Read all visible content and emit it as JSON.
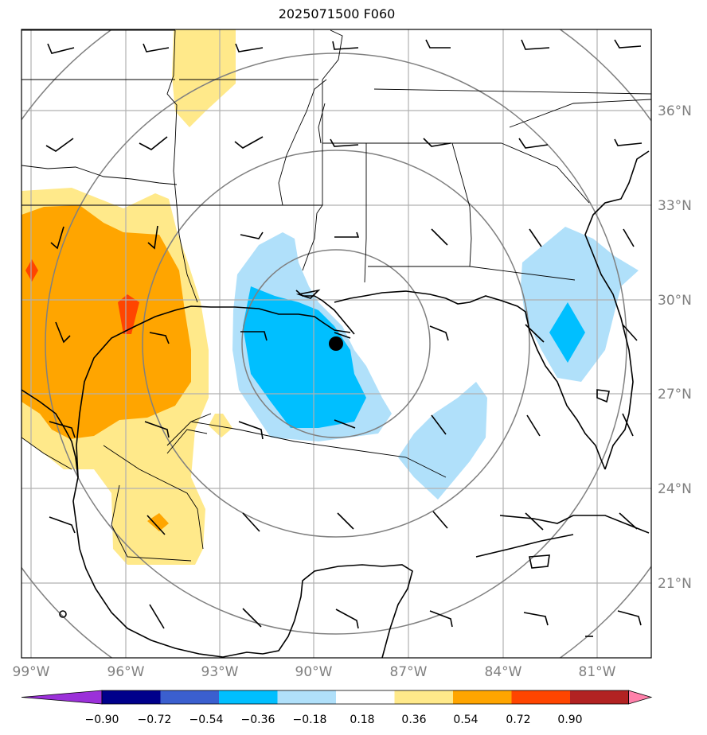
{
  "title": "2025071500 F060",
  "longitude_labels": [
    "99°W",
    "96°W",
    "93°W",
    "90°W",
    "87°W",
    "84°W",
    "81°W"
  ],
  "latitude_labels": [
    "36°N",
    "33°N",
    "30°N",
    "27°N",
    "24°N",
    "21°N"
  ],
  "colorbar": {
    "tick_labels": [
      "−0.90",
      "−0.72",
      "−0.54",
      "−0.36",
      "−0.18",
      "0.18",
      "0.36",
      "0.54",
      "0.72",
      "0.90"
    ],
    "colors": [
      "#9b30d9",
      "#00008b",
      "#3b5fcf",
      "#00bfff",
      "#b0e0fa",
      "#ffffff",
      "#ffe98a",
      "#ffa500",
      "#ff4500",
      "#b22222",
      "#ff80aa"
    ]
  },
  "map": {
    "fill_colors": {
      "light_yellow": "#ffe98a",
      "orange": "#ffa500",
      "red_orange": "#ff4500",
      "light_blue": "#b0e0fa",
      "deep_sky_blue": "#00bfff"
    },
    "center_marker": {
      "lon": -89.3,
      "lat": 28.7
    },
    "range_ring_color": "#808080"
  }
}
